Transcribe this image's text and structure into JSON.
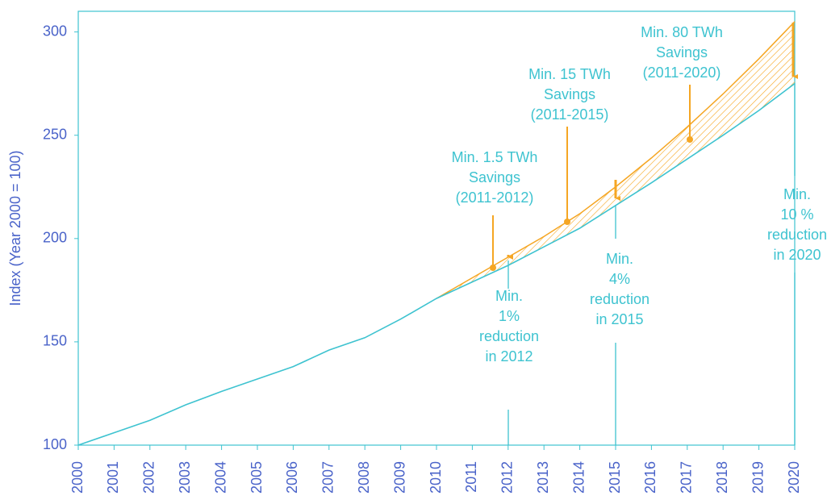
{
  "chart_data": {
    "type": "line",
    "ylabel": "Index (Year 2000 = 100)",
    "x": [
      2000,
      2001,
      2002,
      2003,
      2004,
      2005,
      2006,
      2007,
      2008,
      2009,
      2010,
      2011,
      2012,
      2013,
      2014,
      2015,
      2016,
      2017,
      2018,
      2019,
      2020
    ],
    "series": [
      {
        "color": "#f5a623",
        "values": [
          null,
          null,
          null,
          null,
          null,
          null,
          null,
          null,
          null,
          null,
          171,
          181,
          191,
          201,
          212,
          225,
          239,
          254,
          270,
          287,
          305
        ]
      },
      {
        "color": "#3ec3d0",
        "values": [
          100,
          106,
          112,
          119.5,
          126,
          132,
          138,
          146,
          152,
          161,
          171,
          179,
          187,
          196,
          205,
          216,
          227,
          238.5,
          250,
          262,
          275
        ]
      }
    ],
    "xlim": [
      2000,
      2020
    ],
    "xticks": [
      2000,
      2001,
      2002,
      2003,
      2004,
      2005,
      2006,
      2007,
      2008,
      2009,
      2010,
      2011,
      2012,
      2013,
      2014,
      2015,
      2016,
      2017,
      2018,
      2019,
      2020
    ],
    "ylim": [
      100,
      310
    ],
    "yticks": [
      100,
      150,
      200,
      250,
      300
    ],
    "annotations": [
      [
        "Min. 1.5 TWh",
        "Savings",
        "(2011-2012)"
      ],
      [
        "Min. 15 TWh",
        "Savings",
        "(2011-2015)"
      ],
      [
        "Min. 80 TWh",
        "Savings",
        "(2011-2020)"
      ],
      [
        "Min.",
        "1%",
        "reduction",
        "in 2012"
      ],
      [
        "Min.",
        "4%",
        "reduction",
        "in 2015"
      ],
      [
        "Min.",
        "10 %",
        "reduction",
        "in 2020"
      ]
    ]
  }
}
